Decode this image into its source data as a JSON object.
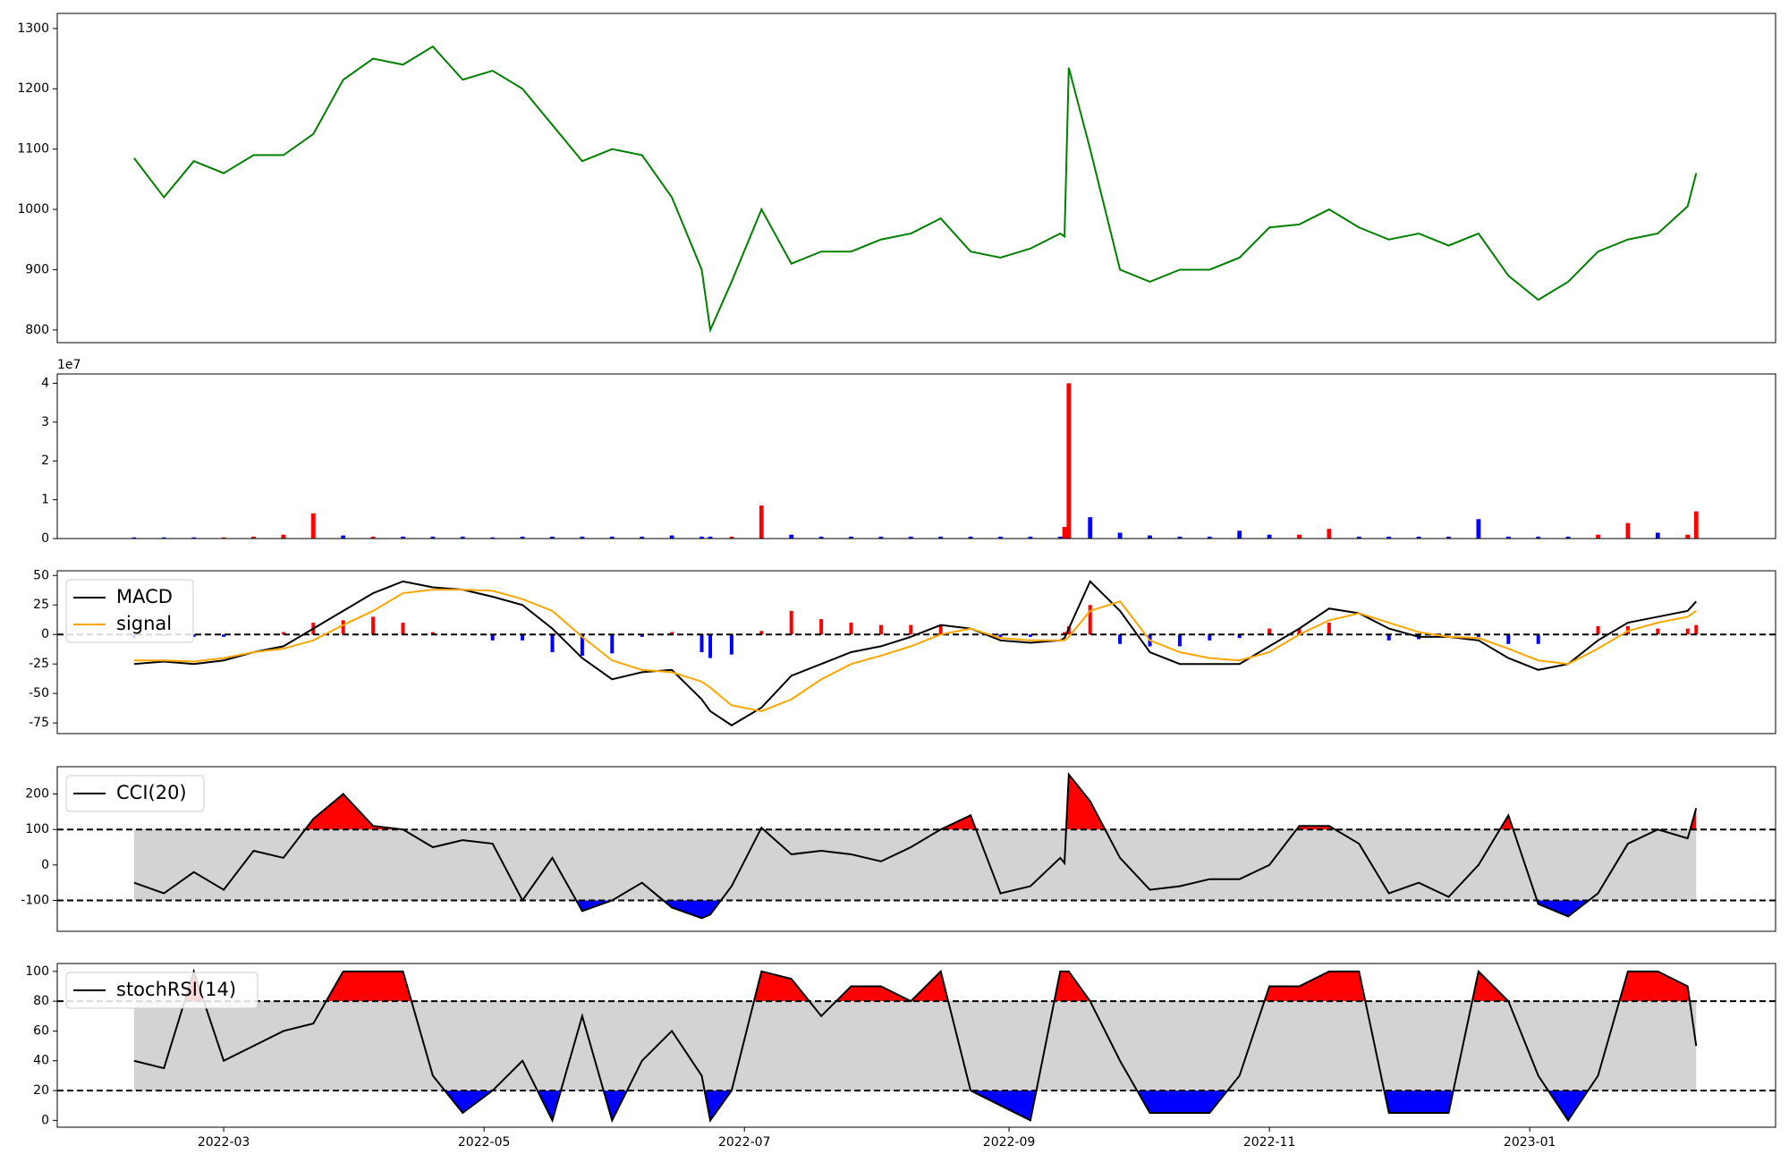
{
  "chart_data": [
    {
      "type": "line",
      "color": "green",
      "x": [
        38,
        45,
        52,
        59,
        66,
        73,
        80,
        87,
        94,
        101,
        108,
        115,
        122,
        129,
        136,
        143,
        150,
        157,
        164,
        171,
        173,
        178,
        185,
        192,
        199,
        206,
        213,
        220,
        227,
        234,
        241,
        248,
        255,
        256,
        257,
        262,
        269,
        276,
        283,
        290,
        297,
        304,
        311,
        318,
        325,
        332,
        339,
        346,
        353,
        360,
        367,
        374,
        381,
        388,
        395,
        402,
        404
      ],
      "values": [
        1085,
        1020,
        1080,
        1060,
        1090,
        1090,
        1125,
        1215,
        1250,
        1240,
        1270,
        1215,
        1230,
        1200,
        1140,
        1080,
        1100,
        1090,
        1020,
        900,
        800,
        880,
        1000,
        910,
        930,
        930,
        950,
        960,
        985,
        930,
        920,
        935,
        960,
        955,
        1235,
        1100,
        900,
        880,
        900,
        900,
        920,
        970,
        975,
        1000,
        970,
        950,
        960,
        940,
        960,
        890,
        850,
        880,
        930,
        950,
        960,
        1005,
        1060
      ],
      "xlim": [
        20,
        422.6
      ],
      "ylim": [
        779,
        1325
      ],
      "yticks": [
        800,
        900,
        1000,
        1100,
        1200,
        1300
      ]
    },
    {
      "type": "bar",
      "y_offset_label": "1e7",
      "x": [
        38,
        45,
        52,
        59,
        66,
        73,
        80,
        87,
        94,
        101,
        108,
        115,
        122,
        129,
        136,
        143,
        150,
        157,
        164,
        171,
        173,
        178,
        185,
        192,
        199,
        206,
        213,
        220,
        227,
        234,
        241,
        248,
        255,
        256,
        257,
        262,
        269,
        276,
        283,
        290,
        297,
        304,
        311,
        318,
        325,
        332,
        339,
        346,
        353,
        360,
        367,
        374,
        381,
        388,
        395,
        402,
        404
      ],
      "values": [
        0.03,
        0.03,
        0.03,
        0.03,
        0.05,
        0.1,
        0.65,
        0.08,
        0.05,
        0.05,
        0.05,
        0.05,
        0.03,
        0.05,
        0.05,
        0.05,
        0.05,
        0.05,
        0.08,
        0.05,
        0.05,
        0.05,
        0.85,
        0.1,
        0.05,
        0.05,
        0.05,
        0.05,
        0.05,
        0.05,
        0.05,
        0.05,
        0.05,
        0.3,
        4.0,
        0.55,
        0.15,
        0.08,
        0.05,
        0.05,
        0.2,
        0.1,
        0.1,
        0.25,
        0.05,
        0.05,
        0.05,
        0.05,
        0.5,
        0.05,
        0.05,
        0.05,
        0.1,
        0.4,
        0.15,
        0.1,
        0.7
      ],
      "colors": [
        "blue",
        "blue",
        "blue",
        "red",
        "red",
        "red",
        "red",
        "blue",
        "red",
        "blue",
        "blue",
        "blue",
        "blue",
        "blue",
        "blue",
        "blue",
        "blue",
        "blue",
        "blue",
        "blue",
        "blue",
        "red",
        "red",
        "blue",
        "blue",
        "blue",
        "blue",
        "blue",
        "blue",
        "blue",
        "blue",
        "blue",
        "blue",
        "red",
        "red",
        "blue",
        "blue",
        "blue",
        "blue",
        "blue",
        "blue",
        "blue",
        "red",
        "red",
        "blue",
        "blue",
        "blue",
        "blue",
        "blue",
        "blue",
        "blue",
        "blue",
        "red",
        "red",
        "blue",
        "red",
        "red"
      ],
      "xlim": [
        20,
        422.6
      ],
      "ylim": [
        0,
        4.24
      ],
      "yticks": [
        0,
        1,
        2,
        3,
        4
      ]
    },
    {
      "type": "macd",
      "hline": 0,
      "pos_color": "red",
      "neg_color": "blue",
      "x": [
        38,
        45,
        52,
        59,
        66,
        73,
        80,
        87,
        94,
        101,
        108,
        115,
        122,
        129,
        136,
        143,
        150,
        157,
        164,
        171,
        173,
        178,
        185,
        192,
        199,
        206,
        213,
        220,
        227,
        234,
        241,
        248,
        255,
        256,
        257,
        262,
        269,
        276,
        283,
        290,
        297,
        304,
        311,
        318,
        325,
        332,
        339,
        346,
        353,
        360,
        367,
        374,
        381,
        388,
        395,
        402,
        404
      ],
      "series": [
        {
          "name": "MACD",
          "color": "black",
          "values": [
            -25,
            -23,
            -25,
            -22,
            -15,
            -10,
            5,
            20,
            35,
            45,
            40,
            38,
            32,
            25,
            5,
            -20,
            -38,
            -32,
            -30,
            -55,
            -65,
            -77,
            -62,
            -35,
            -25,
            -15,
            -10,
            -2,
            8,
            5,
            -5,
            -7,
            -5,
            -3,
            5,
            45,
            20,
            -15,
            -25,
            -25,
            -25,
            -10,
            5,
            22,
            18,
            5,
            -2,
            -2,
            -5,
            -20,
            -30,
            -25,
            -5,
            10,
            15,
            20,
            28
          ]
        },
        {
          "name": "signal",
          "color": "orange",
          "values": [
            -22,
            -22,
            -23,
            -20,
            -15,
            -12,
            -5,
            8,
            20,
            35,
            38,
            38,
            37,
            30,
            20,
            -2,
            -22,
            -30,
            -32,
            -40,
            -45,
            -60,
            -65,
            -55,
            -38,
            -25,
            -18,
            -10,
            0,
            5,
            -3,
            -5,
            -5,
            -5,
            -2,
            20,
            28,
            -5,
            -15,
            -20,
            -22,
            -15,
            0,
            12,
            18,
            10,
            2,
            -2,
            -3,
            -12,
            -22,
            -25,
            -12,
            3,
            10,
            15,
            20
          ]
        }
      ],
      "histogram": [
        -3,
        -1,
        -2,
        -2,
        0,
        2,
        10,
        12,
        15,
        10,
        2,
        0,
        -5,
        -5,
        -15,
        -18,
        -16,
        -2,
        2,
        -15,
        -20,
        -17,
        3,
        20,
        13,
        10,
        8,
        8,
        8,
        0,
        -2,
        -2,
        0,
        2,
        7,
        25,
        -8,
        -10,
        -10,
        -5,
        -3,
        5,
        5,
        10,
        0,
        -5,
        -4,
        0,
        -2,
        -8,
        -8,
        0,
        7,
        7,
        5,
        5,
        8
      ],
      "xlim": [
        20,
        422.6
      ],
      "ylim": [
        -84,
        54
      ],
      "yticks": [
        -75,
        -50,
        -25,
        0,
        25,
        50
      ]
    },
    {
      "type": "band",
      "bands": [
        -100,
        100
      ],
      "band_color": "lightgray",
      "above_color": "red",
      "below_color": "blue",
      "x": [
        38,
        45,
        52,
        59,
        66,
        73,
        80,
        87,
        94,
        101,
        108,
        115,
        122,
        129,
        136,
        143,
        150,
        157,
        164,
        171,
        173,
        178,
        185,
        192,
        199,
        206,
        213,
        220,
        227,
        234,
        241,
        248,
        255,
        256,
        257,
        262,
        269,
        276,
        283,
        290,
        297,
        304,
        311,
        318,
        325,
        332,
        339,
        346,
        353,
        360,
        367,
        374,
        381,
        388,
        395,
        402,
        404
      ],
      "series": [
        {
          "name": "CCI(20)",
          "color": "black",
          "values": [
            -50,
            -80,
            -20,
            -70,
            40,
            20,
            130,
            200,
            110,
            100,
            50,
            70,
            60,
            -100,
            20,
            -130,
            -100,
            -50,
            -120,
            -150,
            -140,
            -60,
            105,
            30,
            40,
            30,
            10,
            50,
            100,
            140,
            -80,
            -60,
            20,
            5,
            255,
            180,
            20,
            -70,
            -60,
            -40,
            -40,
            0,
            110,
            110,
            60,
            -80,
            -50,
            -90,
            0,
            140,
            -110,
            -145,
            -80,
            60,
            100,
            75,
            160
          ]
        }
      ],
      "xlim": [
        20,
        422.6
      ],
      "ylim": [
        -187,
        277
      ],
      "yticks": [
        -100,
        0,
        100,
        200
      ]
    },
    {
      "type": "band",
      "bands": [
        20,
        80
      ],
      "band_color": "lightgray",
      "above_color": "red",
      "below_color": "blue",
      "x": [
        38,
        45,
        52,
        59,
        66,
        73,
        80,
        87,
        94,
        101,
        108,
        115,
        122,
        129,
        136,
        143,
        150,
        157,
        164,
        171,
        173,
        178,
        185,
        192,
        199,
        206,
        213,
        220,
        227,
        234,
        241,
        248,
        255,
        256,
        257,
        262,
        269,
        276,
        283,
        290,
        297,
        304,
        311,
        318,
        325,
        332,
        339,
        346,
        353,
        360,
        367,
        374,
        381,
        388,
        395,
        402,
        404
      ],
      "series": [
        {
          "name": "stochRSI(14)",
          "color": "black",
          "values": [
            40,
            35,
            100,
            40,
            50,
            60,
            65,
            100,
            100,
            100,
            30,
            5,
            20,
            40,
            0,
            70,
            0,
            40,
            60,
            30,
            0,
            20,
            100,
            95,
            70,
            90,
            90,
            80,
            100,
            20,
            10,
            0,
            100,
            100,
            100,
            80,
            40,
            5,
            5,
            5,
            30,
            90,
            90,
            100,
            100,
            5,
            5,
            5,
            100,
            80,
            30,
            0,
            30,
            100,
            100,
            90,
            50
          ]
        }
      ],
      "xlim": [
        20,
        422.6
      ],
      "ylim": [
        -4.6,
        105.3
      ],
      "yticks": [
        0,
        20,
        40,
        60,
        80,
        100
      ],
      "xticks": [
        {
          "value": 59,
          "label": "2022-03"
        },
        {
          "value": 120,
          "label": "2022-05"
        },
        {
          "value": 181,
          "label": "2022-07"
        },
        {
          "value": 243,
          "label": "2022-09"
        },
        {
          "value": 304,
          "label": "2022-11"
        },
        {
          "value": 365,
          "label": "2023-01"
        }
      ]
    }
  ]
}
